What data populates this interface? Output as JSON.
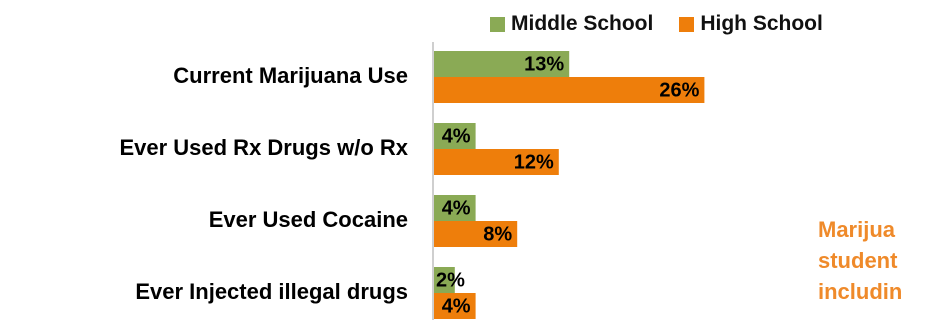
{
  "legend": [
    {
      "label": "Middle School",
      "color": "#8aaa55"
    },
    {
      "label": "High School",
      "color": "#ee7e0b"
    }
  ],
  "chart_data": {
    "type": "bar",
    "orientation": "horizontal",
    "categories": [
      "Current Marijuana Use",
      "Ever Used Rx Drugs w/o Rx",
      "Ever Used Cocaine",
      "Ever Injected illegal drugs"
    ],
    "series": [
      {
        "name": "Middle School",
        "values": [
          13,
          4,
          4,
          2
        ],
        "color": "#8aaa55"
      },
      {
        "name": "High School",
        "values": [
          26,
          12,
          8,
          4
        ],
        "color": "#ee7e0b"
      }
    ],
    "value_suffix": "%",
    "xlim": [
      0,
      100
    ],
    "legend_position": "top-right",
    "grid": false
  },
  "callout": {
    "lines": [
      "Marijua",
      "student",
      "includin"
    ],
    "color": "#ef8a2a"
  }
}
